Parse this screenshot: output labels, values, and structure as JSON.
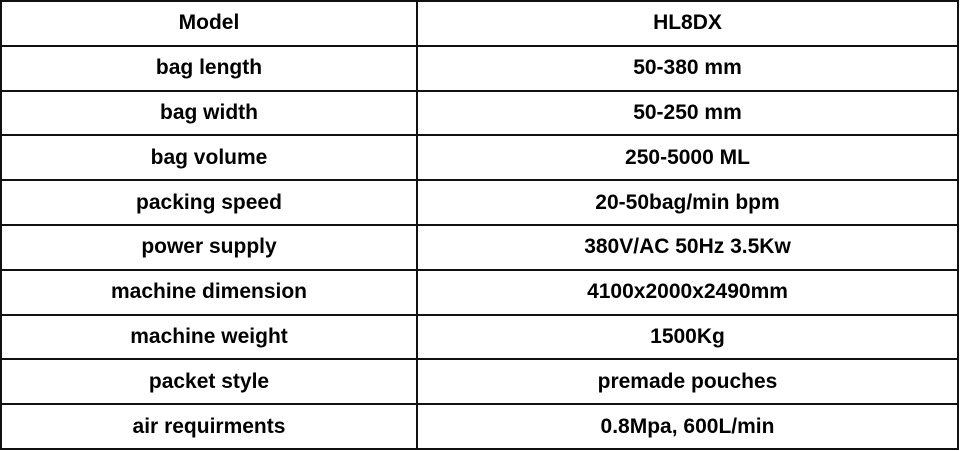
{
  "rows": [
    {
      "label": "Model",
      "value": "HL8DX"
    },
    {
      "label": "bag length",
      "value": "50-380 mm"
    },
    {
      "label": "bag width",
      "value": "50-250 mm"
    },
    {
      "label": "bag volume",
      "value": "250-5000 ML"
    },
    {
      "label": "packing speed",
      "value": "20-50bag/min bpm"
    },
    {
      "label": "power supply",
      "value": "380V/AC 50Hz 3.5Kw"
    },
    {
      "label": "machine dimension",
      "value": "4100x2000x2490mm"
    },
    {
      "label": "machine weight",
      "value": "1500Kg"
    },
    {
      "label": "packet style",
      "value": "premade pouches"
    },
    {
      "label": "air requirments",
      "value": "0.8Mpa, 600L/min"
    }
  ]
}
